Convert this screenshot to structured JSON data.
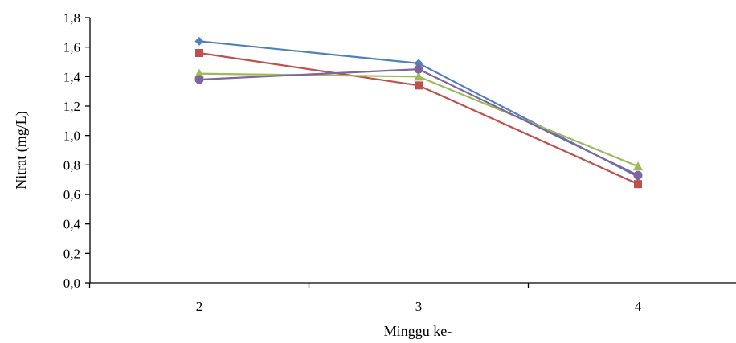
{
  "chart_data": {
    "type": "line",
    "xlabel": "Minggu ke-",
    "ylabel": "Nitrat (mg/L)",
    "categories": [
      "2",
      "3",
      "4"
    ],
    "ylim": [
      0,
      1.8
    ],
    "yticks": [
      "0,0",
      "0,2",
      "0,4",
      "0,6",
      "0,8",
      "1,0",
      "1,2",
      "1,4",
      "1,6",
      "1,8"
    ],
    "grid": false,
    "series": [
      {
        "color": "#4f81bd",
        "marker": "diamond",
        "values": [
          1.64,
          1.49,
          0.72
        ]
      },
      {
        "color": "#c0504d",
        "marker": "square",
        "values": [
          1.56,
          1.34,
          0.67
        ]
      },
      {
        "color": "#9bbb59",
        "marker": "triangle",
        "values": [
          1.42,
          1.4,
          0.79
        ]
      },
      {
        "color": "#8064a2",
        "marker": "circle",
        "values": [
          1.38,
          1.45,
          0.73
        ]
      }
    ]
  }
}
